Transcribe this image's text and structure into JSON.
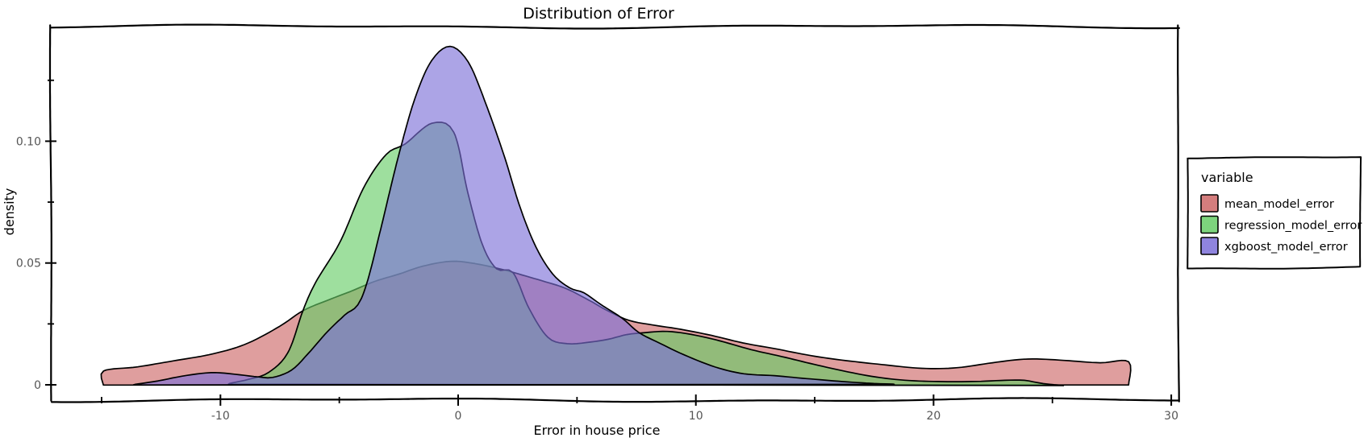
{
  "chart_data": {
    "type": "area",
    "subtype": "kde-density",
    "style": "xkcd-sketch",
    "title": "Distribution of Error",
    "xlabel": "Error in house price",
    "ylabel": "density",
    "grid": false,
    "background": "#ffffff",
    "legend": {
      "title": "variable",
      "position": "right-outside",
      "entries": [
        "mean_model_error",
        "regression_model_error",
        "xgboost_model_error"
      ]
    },
    "xlim": [
      -17.1,
      30.3
    ],
    "ylim": [
      -0.0063,
      0.1471
    ],
    "x_major_ticks": [
      {
        "v": -10,
        "label": "-10"
      },
      {
        "v": 0,
        "label": "0"
      },
      {
        "v": 10,
        "label": "10"
      },
      {
        "v": 20,
        "label": "20"
      },
      {
        "v": 30,
        "label": "30"
      }
    ],
    "x_minor_ticks": [
      -15,
      -5,
      5,
      15,
      25
    ],
    "y_major_ticks": [
      {
        "v": 0,
        "label": "0"
      },
      {
        "v": 0.05,
        "label": "0.05"
      },
      {
        "v": 0.1,
        "label": "0.10"
      }
    ],
    "y_minor_ticks": [
      0.025,
      0.075,
      0.125
    ],
    "colors": {
      "mean_model_error": "#cc6666",
      "regression_model_error": "#66cc66",
      "xgboost_model_error": "#7b6fd8",
      "outline": "#000000",
      "tick_label": "#555555",
      "text": "#000000"
    },
    "fill_opacity": 0.63,
    "series": [
      {
        "name": "mean_model_error",
        "color": "#cc6666",
        "clipped_edges": true,
        "points": [
          [
            -14.93,
            0.006
          ],
          [
            -13.5,
            0.0078
          ],
          [
            -12,
            0.01
          ],
          [
            -10.5,
            0.0125
          ],
          [
            -9,
            0.0168
          ],
          [
            -7.5,
            0.024
          ],
          [
            -6.5,
            0.03
          ],
          [
            -5.5,
            0.034
          ],
          [
            -4.5,
            0.038
          ],
          [
            -3.5,
            0.0424
          ],
          [
            -2.5,
            0.0455
          ],
          [
            -1.5,
            0.0487
          ],
          [
            -0.3,
            0.0507
          ],
          [
            0.7,
            0.0499
          ],
          [
            1.7,
            0.0481
          ],
          [
            2.5,
            0.0461
          ],
          [
            3.5,
            0.0432
          ],
          [
            4.5,
            0.0398
          ],
          [
            5.5,
            0.0346
          ],
          [
            6.3,
            0.0301
          ],
          [
            7.2,
            0.0262
          ],
          [
            8.2,
            0.0244
          ],
          [
            9.2,
            0.0229
          ],
          [
            10.5,
            0.0203
          ],
          [
            12,
            0.0169
          ],
          [
            13.5,
            0.0147
          ],
          [
            15,
            0.0122
          ],
          [
            16.5,
            0.01
          ],
          [
            18,
            0.0082
          ],
          [
            19.5,
            0.0069
          ],
          [
            21,
            0.0071
          ],
          [
            22.5,
            0.0087
          ],
          [
            24,
            0.01
          ],
          [
            25.5,
            0.0098
          ],
          [
            27,
            0.0092
          ],
          [
            28.2,
            0.0096
          ]
        ]
      },
      {
        "name": "regression_model_error",
        "color": "#66cc66",
        "clipped_edges": false,
        "points": [
          [
            -9.6,
            0.0003
          ],
          [
            -8.8,
            0.0022
          ],
          [
            -8.0,
            0.0052
          ],
          [
            -7.2,
            0.0135
          ],
          [
            -6.55,
            0.0307
          ],
          [
            -6.0,
            0.042
          ],
          [
            -5.0,
            0.058
          ],
          [
            -4.0,
            0.08
          ],
          [
            -3.0,
            0.094
          ],
          [
            -2.2,
            0.0985
          ],
          [
            -1.1,
            0.1074
          ],
          [
            -0.2,
            0.104
          ],
          [
            0.4,
            0.079
          ],
          [
            1.0,
            0.058
          ],
          [
            1.6,
            0.048
          ],
          [
            2.3,
            0.0462
          ],
          [
            3.0,
            0.031
          ],
          [
            3.8,
            0.019
          ],
          [
            4.6,
            0.0166
          ],
          [
            5.4,
            0.0172
          ],
          [
            6.3,
            0.0186
          ],
          [
            7.1,
            0.0205
          ],
          [
            7.9,
            0.0213
          ],
          [
            8.8,
            0.0218
          ],
          [
            9.8,
            0.0208
          ],
          [
            11,
            0.0185
          ],
          [
            12.3,
            0.015
          ],
          [
            13.6,
            0.0118
          ],
          [
            15,
            0.0082
          ],
          [
            16.4,
            0.0052
          ],
          [
            17.8,
            0.0028
          ],
          [
            19.2,
            0.0013
          ],
          [
            20.6,
            0.0008
          ],
          [
            21.8,
            0.0011
          ],
          [
            23,
            0.002
          ],
          [
            23.8,
            0.0022
          ],
          [
            24.6,
            0.0009
          ],
          [
            25.4,
            0.0001
          ]
        ]
      },
      {
        "name": "xgboost_model_error",
        "color": "#7b6fd8",
        "clipped_edges": false,
        "points": [
          [
            -13.6,
            0.0002
          ],
          [
            -12.6,
            0.0013
          ],
          [
            -11.6,
            0.003
          ],
          [
            -10.6,
            0.0044
          ],
          [
            -10,
            0.0046
          ],
          [
            -9.2,
            0.004
          ],
          [
            -8.4,
            0.0032
          ],
          [
            -7.8,
            0.003
          ],
          [
            -7.0,
            0.006
          ],
          [
            -6.3,
            0.0128
          ],
          [
            -5.5,
            0.022
          ],
          [
            -4.8,
            0.029
          ],
          [
            -4.1,
            0.036
          ],
          [
            -3.3,
            0.062
          ],
          [
            -2.5,
            0.094
          ],
          [
            -1.8,
            0.117
          ],
          [
            -1.1,
            0.133
          ],
          [
            -0.35,
            0.1391
          ],
          [
            0.4,
            0.133
          ],
          [
            1.1,
            0.117
          ],
          [
            1.9,
            0.095
          ],
          [
            2.6,
            0.073
          ],
          [
            3.3,
            0.056
          ],
          [
            4.0,
            0.045
          ],
          [
            4.7,
            0.0395
          ],
          [
            5.3,
            0.0376
          ],
          [
            6.0,
            0.033
          ],
          [
            6.9,
            0.0274
          ],
          [
            7.6,
            0.0215
          ],
          [
            8.5,
            0.017
          ],
          [
            9.5,
            0.0125
          ],
          [
            10.8,
            0.0078
          ],
          [
            12,
            0.005
          ],
          [
            13.3,
            0.0038
          ],
          [
            14.5,
            0.0024
          ],
          [
            16,
            0.0012
          ],
          [
            17.5,
            0.0004
          ],
          [
            18.3,
            0.0001
          ]
        ]
      }
    ]
  }
}
